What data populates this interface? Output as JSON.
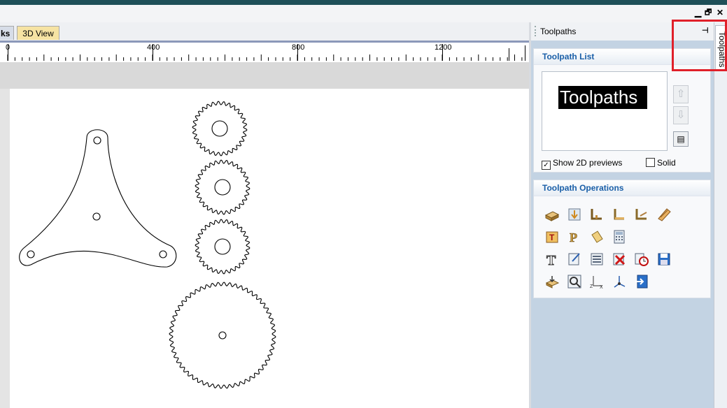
{
  "window": {
    "controls": {
      "minimize": "▁",
      "restore": "🗗",
      "close": "✕"
    }
  },
  "tabs": [
    {
      "label": "ks"
    },
    {
      "label": "3D View"
    }
  ],
  "ruler": {
    "labels": [
      "0",
      "400",
      "800",
      "1200"
    ]
  },
  "panel": {
    "title": "Toolpaths",
    "pin_icon": "pin-icon",
    "toolpath_list": {
      "title": "Toolpath List",
      "item": "Toolpaths",
      "up_icon": "arrow-up-icon",
      "down_icon": "arrow-down-icon",
      "summary_icon": "summary-icon",
      "show_previews": {
        "label": "Show 2D previews",
        "checked": true
      },
      "solid": {
        "label": "Solid",
        "checked": false
      }
    },
    "operations": {
      "title": "Toolpath Operations",
      "icons": [
        "profile-toolpath-icon",
        "pocket-toolpath-icon",
        "drill-toolpath-icon",
        "quick-engrave-icon",
        "fluting-toolpath-icon",
        "texture-toolpath-icon",
        "v-carve-icon",
        "prism-carve-icon",
        "moulding-toolpath-icon",
        "toolpath-calculator-icon",
        "text-tool-icon",
        "edit-toolpath-icon",
        "toolpath-list-icon",
        "delete-toolpath-icon",
        "toolpath-timer-icon",
        "save-toolpath-icon",
        "material-setup-icon",
        "preview-toolpaths-icon",
        "xyz-origin-icon",
        "axis-setup-icon",
        "import-toolpath-icon"
      ]
    }
  },
  "sidetab": {
    "label": "Toolpaths"
  },
  "colors": {
    "highlight": "#e0202a",
    "accent": "#1a5fa8",
    "titlebar": "#1e4f58"
  }
}
